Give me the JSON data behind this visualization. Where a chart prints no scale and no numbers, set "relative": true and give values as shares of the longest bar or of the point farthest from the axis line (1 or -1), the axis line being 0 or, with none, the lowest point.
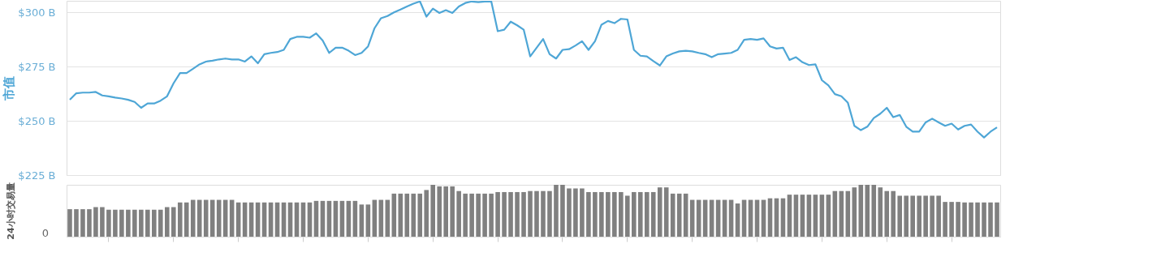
{
  "chart_data": [
    {
      "type": "line",
      "ylabel": "市值",
      "categories": [
        null,
        null,
        null,
        null,
        null,
        null,
        null,
        null,
        null,
        null,
        null,
        null,
        null,
        null,
        null,
        null,
        null,
        null,
        null,
        null,
        null,
        null,
        null,
        null,
        null,
        null,
        null,
        null,
        null,
        null,
        null,
        null,
        null,
        null,
        null,
        null,
        null,
        null,
        null,
        null,
        null,
        null,
        null,
        null,
        null,
        null,
        null,
        null,
        null,
        null,
        null,
        null,
        null,
        null,
        null,
        null,
        null,
        null,
        null,
        null,
        null,
        null,
        null,
        null,
        null,
        null,
        null,
        null,
        null,
        null,
        null,
        null,
        null,
        null,
        null,
        null,
        null,
        null,
        null,
        null,
        null,
        null,
        null,
        null,
        null,
        null,
        null,
        null,
        null,
        null,
        null,
        null,
        null,
        null,
        null,
        null,
        null,
        null,
        null,
        null,
        null,
        null,
        null,
        null,
        null,
        null,
        null,
        null,
        null,
        null,
        null,
        null,
        null,
        null,
        null,
        null,
        null,
        null,
        null,
        null,
        null,
        null,
        null,
        null,
        null,
        null,
        null,
        null,
        null,
        null,
        null,
        null,
        null,
        null,
        null,
        null,
        null,
        null,
        null,
        null,
        null,
        null,
        null,
        null
      ],
      "series": [
        {
          "color": "#4ea6d6",
          "values": [
            259.7,
            262.7,
            263,
            263,
            263.3,
            261.7,
            261.3,
            260.7,
            260.3,
            259.7,
            258.7,
            256,
            258,
            258,
            259.3,
            261.3,
            267.3,
            272,
            272,
            274,
            276,
            277.3,
            277.7,
            278.3,
            278.7,
            278.3,
            278.3,
            277.3,
            279.7,
            276.5,
            280.7,
            281.3,
            281.7,
            282.7,
            287.7,
            288.7,
            288.7,
            288.3,
            290.3,
            287,
            281.3,
            283.7,
            283.7,
            282.3,
            280.3,
            281.3,
            284.3,
            292.7,
            297.3,
            298.3,
            300,
            301.3,
            302.7,
            304,
            305,
            298,
            301.7,
            299.7,
            301,
            299.7,
            302.7,
            304.3,
            305,
            304.7,
            305,
            305,
            291.3,
            292,
            295.7,
            294,
            292,
            279.7,
            283.7,
            287.7,
            280.7,
            278.7,
            282.7,
            283,
            284.7,
            286.7,
            282.7,
            286.7,
            294.3,
            296,
            295,
            297,
            296.7,
            282.7,
            280,
            279.7,
            277.5,
            275.5,
            279.7,
            281,
            282,
            282.3,
            282,
            281.3,
            280.7,
            279.3,
            280.7,
            281,
            281.3,
            282.7,
            287.3,
            287.7,
            287.3,
            288,
            284.3,
            283.3,
            283.7,
            278,
            279.3,
            277,
            275.7,
            276,
            268.7,
            266.3,
            262.3,
            261.3,
            258.3,
            247.7,
            245.7,
            247.3,
            251.3,
            253.3,
            256,
            251.7,
            252.7,
            247.3,
            245,
            245,
            249.3,
            251,
            249.3,
            247.7,
            248.7,
            246,
            247.7,
            248.3,
            245,
            242.3,
            245,
            247
          ]
        }
      ],
      "ylim": [
        225,
        305.3
      ],
      "yticks": [
        {
          "value": 225,
          "label": "$225 B"
        },
        {
          "value": 250,
          "label": "$250 B"
        },
        {
          "value": 275,
          "label": "$275 B"
        },
        {
          "value": 300,
          "label": "$300 B"
        }
      ],
      "grid": "y",
      "tick_labels": "y"
    },
    {
      "type": "bar",
      "ylabel": "24小时交易量",
      "relative": true,
      "color": "#808080",
      "annotations": [
        "0"
      ],
      "categories": [
        null,
        null,
        null,
        null,
        null,
        null,
        null,
        null,
        null,
        null,
        null,
        null,
        null,
        null,
        null,
        null,
        null,
        null,
        null,
        null,
        null,
        null,
        null,
        null,
        null,
        null,
        null,
        null,
        null,
        null,
        null,
        null,
        null,
        null,
        null,
        null,
        null,
        null,
        null,
        null,
        null,
        null,
        null,
        null,
        null,
        null,
        null,
        null,
        null,
        null,
        null,
        null,
        null,
        null,
        null,
        null,
        null,
        null,
        null,
        null,
        null,
        null,
        null,
        null,
        null,
        null,
        null,
        null,
        null,
        null,
        null,
        null,
        null,
        null,
        null,
        null,
        null,
        null,
        null,
        null,
        null,
        null,
        null,
        null,
        null,
        null,
        null,
        null,
        null,
        null,
        null,
        null,
        null,
        null,
        null,
        null,
        null,
        null,
        null,
        null,
        null,
        null,
        null,
        null,
        null,
        null,
        null,
        null,
        null,
        null,
        null,
        null,
        null,
        null,
        null,
        null,
        null,
        null,
        null,
        null,
        null,
        null,
        null,
        null,
        null,
        null,
        null,
        null,
        null,
        null,
        null,
        null,
        null,
        null,
        null,
        null,
        null,
        null,
        null,
        null,
        null,
        null,
        null,
        null
      ],
      "values": [
        0.53,
        0.53,
        0.53,
        0.53,
        0.57,
        0.57,
        0.52,
        0.52,
        0.52,
        0.52,
        0.52,
        0.52,
        0.52,
        0.52,
        0.52,
        0.57,
        0.57,
        0.66,
        0.66,
        0.71,
        0.71,
        0.71,
        0.71,
        0.71,
        0.71,
        0.71,
        0.66,
        0.66,
        0.66,
        0.66,
        0.66,
        0.66,
        0.66,
        0.66,
        0.66,
        0.66,
        0.66,
        0.66,
        0.69,
        0.69,
        0.69,
        0.69,
        0.69,
        0.69,
        0.69,
        0.62,
        0.62,
        0.71,
        0.71,
        0.71,
        0.83,
        0.83,
        0.83,
        0.83,
        0.83,
        0.9,
        1,
        0.97,
        0.97,
        0.97,
        0.88,
        0.83,
        0.83,
        0.83,
        0.83,
        0.83,
        0.86,
        0.86,
        0.86,
        0.86,
        0.86,
        0.88,
        0.88,
        0.88,
        0.88,
        1,
        1,
        0.93,
        0.93,
        0.93,
        0.86,
        0.86,
        0.86,
        0.86,
        0.86,
        0.86,
        0.79,
        0.86,
        0.86,
        0.86,
        0.86,
        0.95,
        0.95,
        0.83,
        0.83,
        0.83,
        0.71,
        0.71,
        0.71,
        0.71,
        0.71,
        0.71,
        0.71,
        0.64,
        0.71,
        0.71,
        0.71,
        0.71,
        0.74,
        0.74,
        0.74,
        0.81,
        0.81,
        0.81,
        0.81,
        0.81,
        0.81,
        0.81,
        0.88,
        0.88,
        0.88,
        0.95,
        1,
        1,
        1,
        0.95,
        0.88,
        0.88,
        0.79,
        0.79,
        0.79,
        0.79,
        0.79,
        0.79,
        0.79,
        0.67,
        0.67,
        0.67,
        0.66,
        0.66,
        0.66,
        0.66,
        0.66,
        0.66
      ]
    }
  ]
}
